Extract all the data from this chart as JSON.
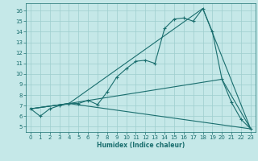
{
  "title": "",
  "xlabel": "Humidex (Indice chaleur)",
  "xlim": [
    -0.5,
    23.5
  ],
  "ylim": [
    4.5,
    16.7
  ],
  "xticks": [
    0,
    1,
    2,
    3,
    4,
    5,
    6,
    7,
    8,
    9,
    10,
    11,
    12,
    13,
    14,
    15,
    16,
    17,
    18,
    19,
    20,
    21,
    22,
    23
  ],
  "yticks": [
    5,
    6,
    7,
    8,
    9,
    10,
    11,
    12,
    13,
    14,
    15,
    16
  ],
  "bg_color": "#c5e8e8",
  "grid_color": "#9ecece",
  "line_color": "#1a6e6e",
  "line1_x": [
    0,
    1,
    2,
    3,
    4,
    5,
    6,
    7,
    8,
    9,
    10,
    11,
    12,
    13,
    14,
    15,
    16,
    17,
    18,
    19,
    20,
    21,
    22,
    23
  ],
  "line1_y": [
    6.7,
    6.0,
    6.7,
    7.0,
    7.2,
    7.2,
    7.5,
    7.1,
    8.3,
    9.7,
    10.5,
    11.2,
    11.3,
    11.0,
    14.3,
    15.2,
    15.3,
    15.0,
    16.2,
    14.0,
    9.5,
    7.3,
    5.7,
    4.8
  ],
  "line2_x": [
    0,
    4,
    18,
    23
  ],
  "line2_y": [
    6.7,
    7.2,
    16.2,
    4.8
  ],
  "line3_x": [
    0,
    4,
    20,
    23
  ],
  "line3_y": [
    6.7,
    7.2,
    9.5,
    4.8
  ],
  "line4_x": [
    0,
    4,
    23
  ],
  "line4_y": [
    6.7,
    7.2,
    4.8
  ],
  "xlabel_fontsize": 5.5,
  "tick_fontsize": 5.0
}
